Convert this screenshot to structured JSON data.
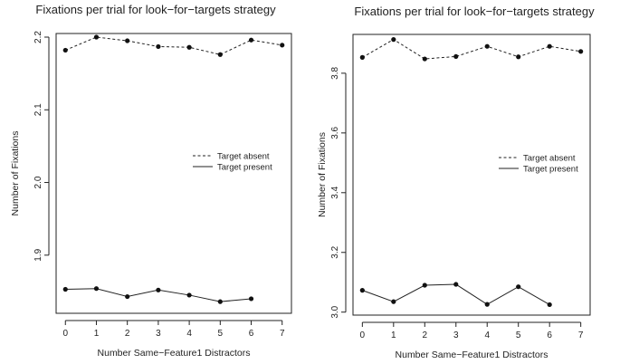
{
  "chart_data": [
    {
      "type": "line",
      "title": "Fixations per trial for look−for−targets strategy",
      "xlabel": "Number Same−Feature1 Distractors",
      "ylabel": "Number of Fixations",
      "x_ticks": [
        "0",
        "1",
        "2",
        "3",
        "4",
        "5",
        "6",
        "7"
      ],
      "y_ticks": [
        "1.9",
        "2.0",
        "2.1",
        "2.2"
      ],
      "y_tick_values": [
        1.9,
        2.0,
        2.1,
        2.2
      ],
      "xlim": [
        -0.3,
        7.3
      ],
      "ylim": [
        1.82,
        2.205
      ],
      "legend_position": "right-middle",
      "series": [
        {
          "name": "Target absent",
          "style": "dashed",
          "x": [
            0,
            1,
            2,
            3,
            4,
            5,
            6,
            7
          ],
          "values": [
            2.182,
            2.2,
            2.195,
            2.187,
            2.186,
            2.176,
            2.196,
            2.189
          ]
        },
        {
          "name": "Target present",
          "style": "solid",
          "x": [
            0,
            1,
            2,
            3,
            4,
            5,
            6
          ],
          "values": [
            1.853,
            1.854,
            1.843,
            1.852,
            1.845,
            1.836,
            1.84
          ]
        }
      ]
    },
    {
      "type": "line",
      "title": "Fixations per trial for look−for−targets strategy",
      "xlabel": "Number Same−Feature1 Distractors",
      "ylabel": "Number of Fixations",
      "x_ticks": [
        "0",
        "1",
        "2",
        "3",
        "4",
        "5",
        "6",
        "7"
      ],
      "y_ticks": [
        "3.0",
        "3.2",
        "3.4",
        "3.6",
        "3.8"
      ],
      "y_tick_values": [
        3.0,
        3.2,
        3.4,
        3.6,
        3.8
      ],
      "xlim": [
        -0.3,
        7.3
      ],
      "ylim": [
        2.99,
        3.93
      ],
      "legend_position": "right-middle",
      "series": [
        {
          "name": "Target absent",
          "style": "dashed",
          "x": [
            0,
            1,
            2,
            3,
            4,
            5,
            6,
            7
          ],
          "values": [
            3.853,
            3.913,
            3.848,
            3.856,
            3.89,
            3.855,
            3.89,
            3.873
          ]
        },
        {
          "name": "Target present",
          "style": "solid",
          "x": [
            0,
            1,
            2,
            3,
            4,
            5,
            6
          ],
          "values": [
            3.073,
            3.035,
            3.09,
            3.093,
            3.026,
            3.085,
            3.025
          ]
        }
      ]
    }
  ]
}
